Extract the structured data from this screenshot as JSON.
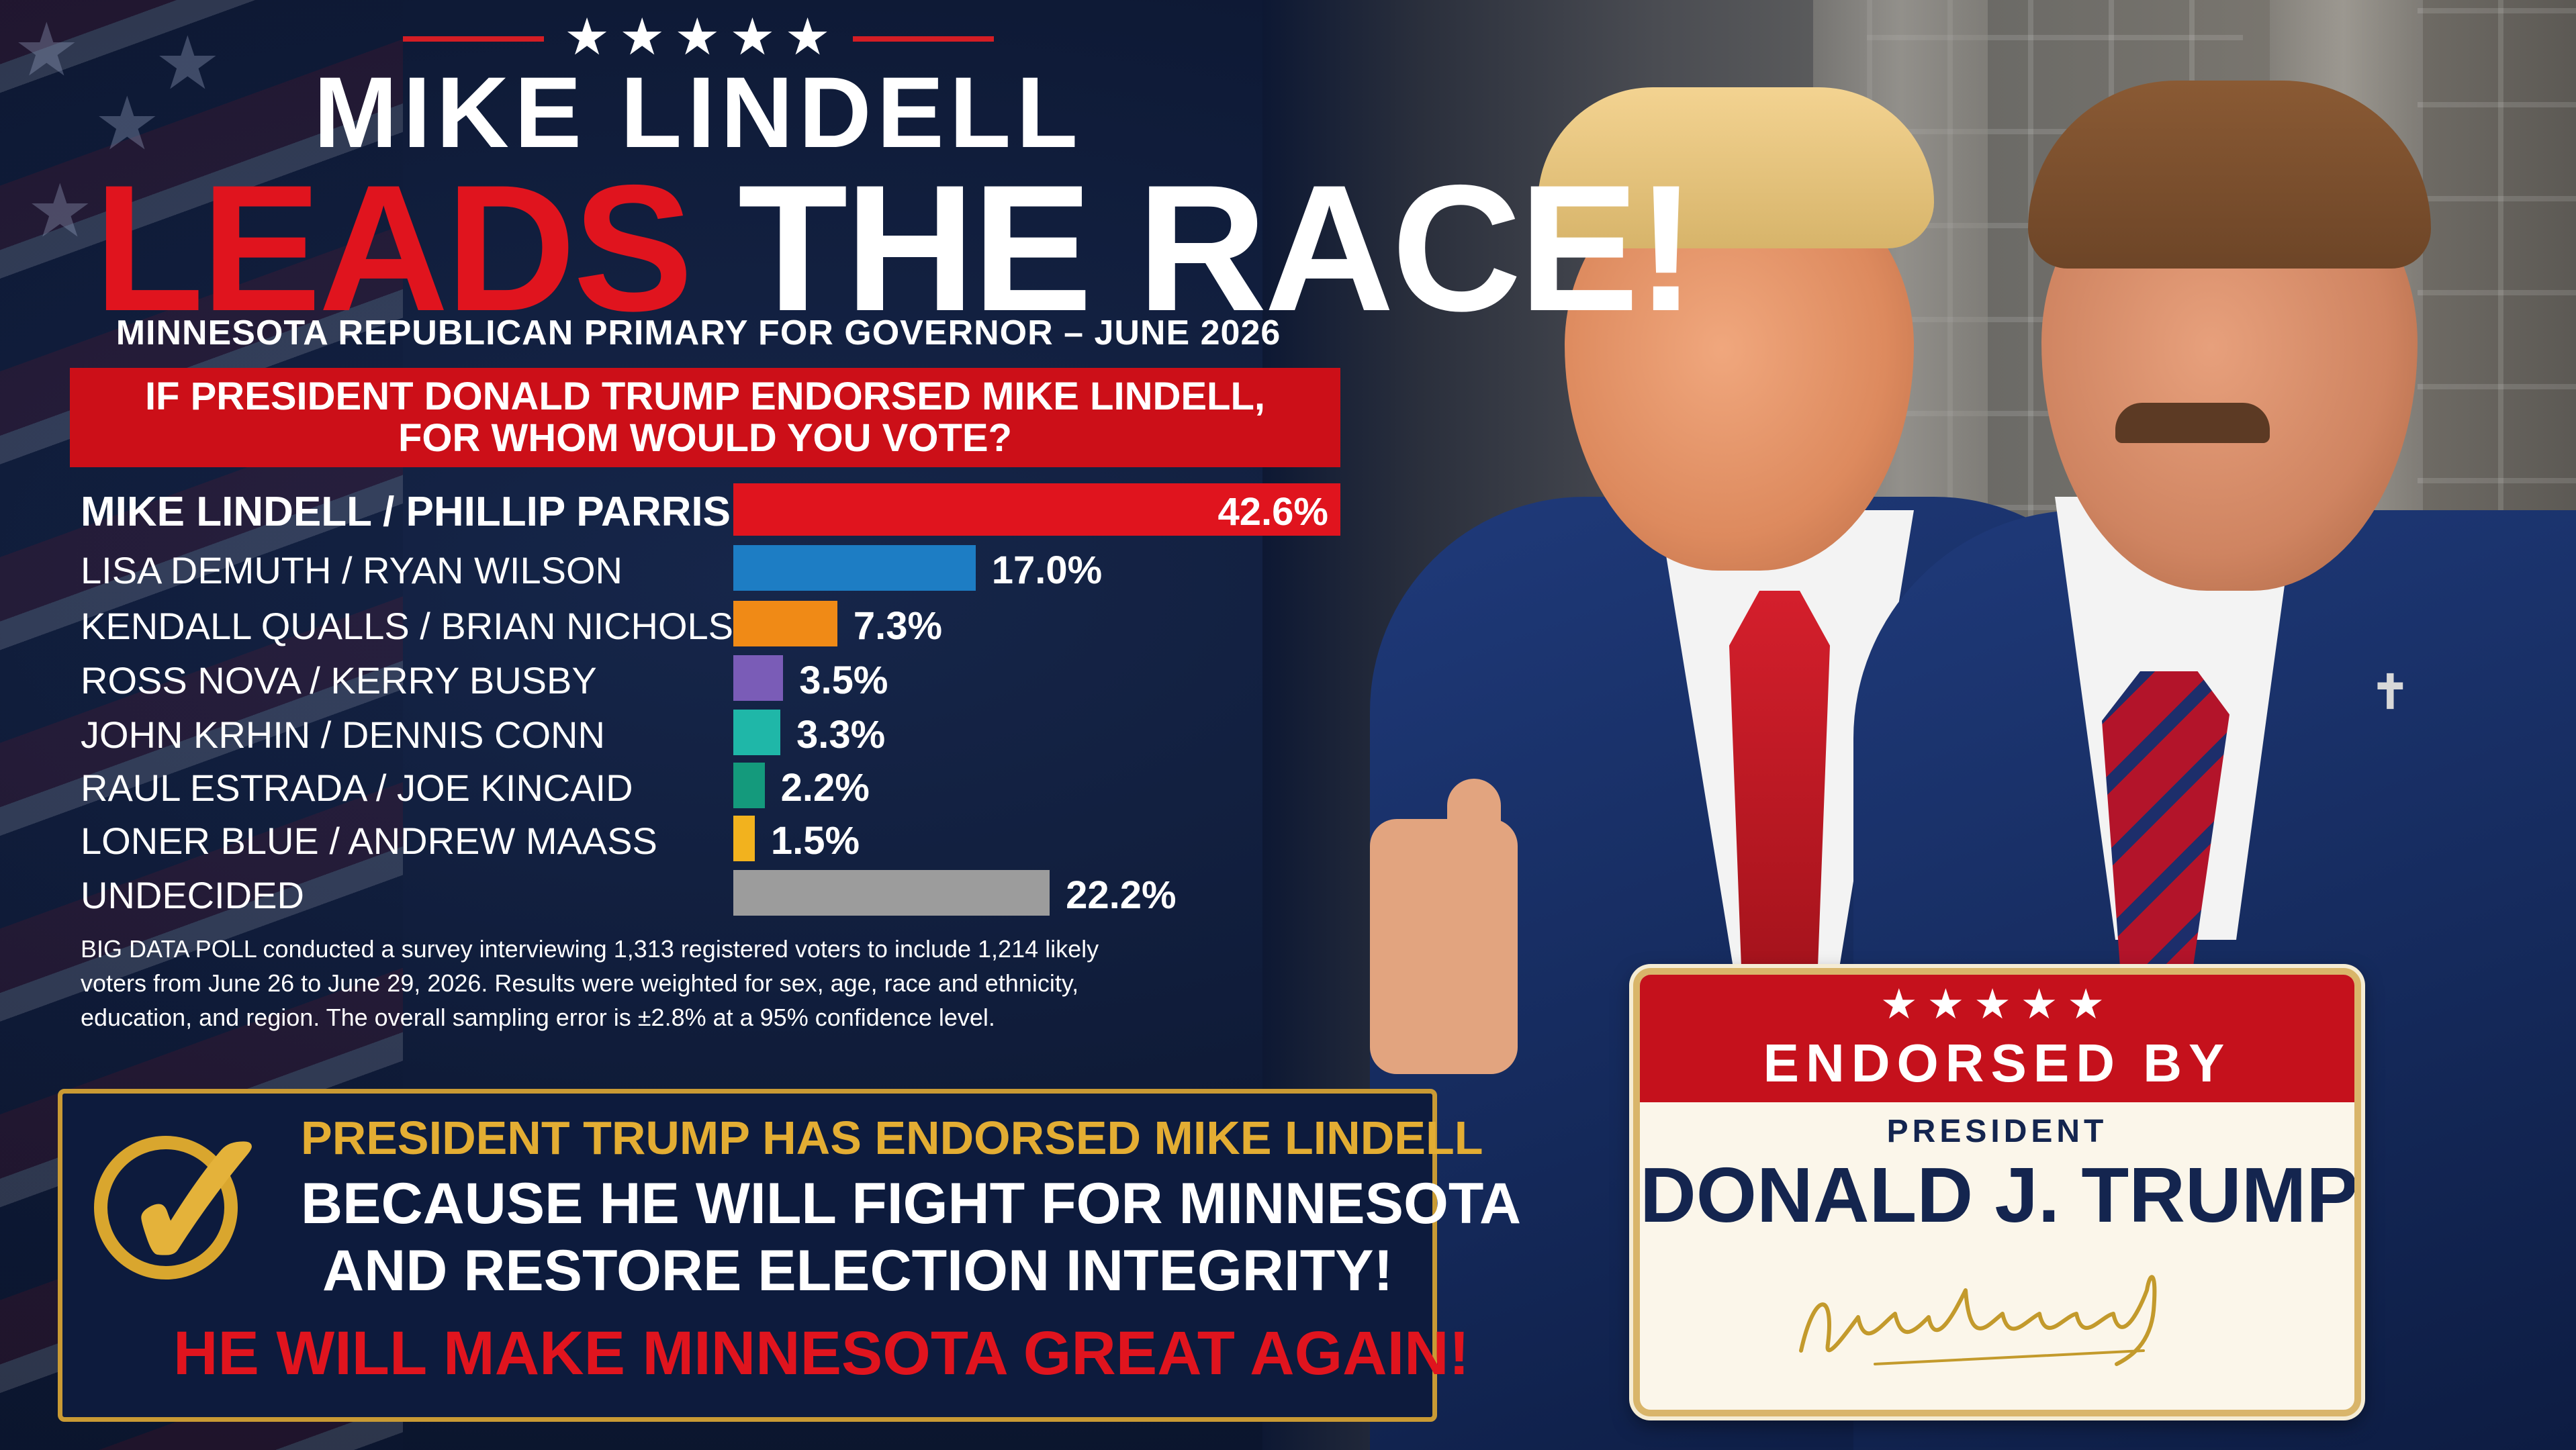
{
  "header": {
    "top_stars": "★★★★★",
    "title_line1": "MIKE LINDELL",
    "title_line2_red": "LEADS",
    "title_line2_white": "THE RACE!",
    "subtitle": "MINNESOTA REPUBLICAN PRIMARY FOR GOVERNOR – JUNE 2026",
    "question_line1": "IF PRESIDENT DONALD TRUMP ENDORSED MIKE LINDELL,",
    "question_line2": "FOR WHOM WOULD YOU VOTE?"
  },
  "chart_data": {
    "type": "bar",
    "orientation": "horizontal",
    "categories": [
      "MIKE LINDELL / PHILLIP PARRISH",
      "LISA DEMUTH / RYAN WILSON",
      "KENDALL QUALLS / BRIAN NICHOLSON",
      "ROSS NOVA / KERRY BUSBY",
      "JOHN KRHIN / DENNIS CONN",
      "RAUL ESTRADA / JOE KINCAID",
      "LONER BLUE / ANDREW MAASS",
      "UNDECIDED"
    ],
    "values": [
      42.6,
      17.0,
      7.3,
      3.5,
      3.3,
      2.2,
      1.5,
      22.2
    ],
    "value_labels": [
      "42.6%",
      "17.0%",
      "7.3%",
      "3.5%",
      "3.3%",
      "2.2%",
      "1.5%",
      "22.2%"
    ],
    "colors": [
      "#e0141e",
      "#1d7dc4",
      "#f08a16",
      "#7a5cb7",
      "#1fb7a8",
      "#149a7c",
      "#f2b21e",
      "#9c9c9c"
    ],
    "xlim": [
      0,
      42.6
    ],
    "grid": false,
    "legend": "none"
  },
  "note": "BIG DATA POLL conducted a survey interviewing 1,313 registered voters to include 1,214 likely voters from June 26 to June 29, 2026. Results were weighted for sex, age, race and ethnicity, education, and region. The overall sampling error is ±2.8% at a 95% confidence level.",
  "endorsement": {
    "line1": "PRESIDENT TRUMP HAS ENDORSED MIKE LINDELL",
    "line2": "BECAUSE HE WILL FIGHT FOR MINNESOTA",
    "line3": "AND RESTORE ELECTION INTEGRITY!",
    "line4": "HE WILL MAKE MINNESOTA GREAT AGAIN!",
    "check_icon": "check-circle-icon"
  },
  "badge": {
    "stars": "★★★★★",
    "endorsed_by": "ENDORSED BY",
    "president": "PRESIDENT",
    "name": "DONALD J. TRUMP",
    "signature": "Donald J. Trump"
  },
  "colors": {
    "background": "#0d1833",
    "accent_red": "#e0141e",
    "accent_gold": "#e3ad33",
    "navy": "#14254f"
  }
}
